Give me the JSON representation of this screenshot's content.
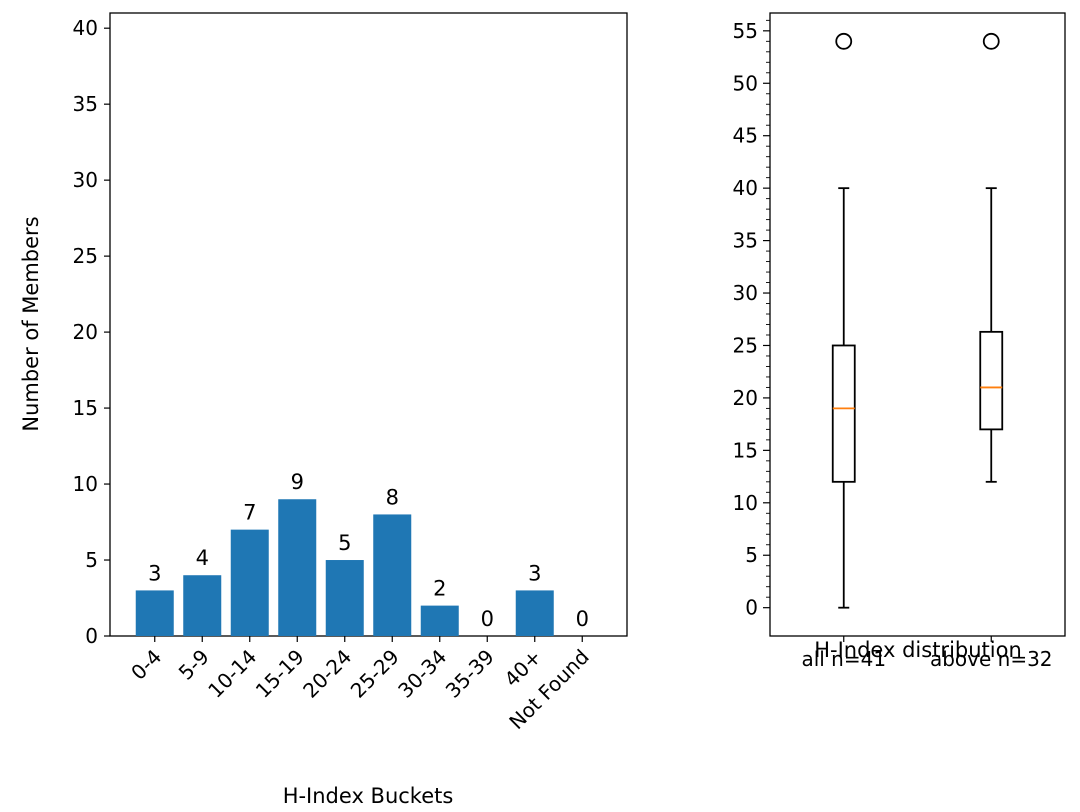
{
  "chart_data": [
    {
      "type": "bar",
      "xlabel": "H-Index Buckets",
      "ylabel": "Number of Members",
      "categories": [
        "0-4",
        "5-9",
        "10-14",
        "15-19",
        "20-24",
        "25-29",
        "30-34",
        "35-39",
        "40+",
        "Not Found"
      ],
      "values": [
        3,
        4,
        7,
        9,
        5,
        8,
        2,
        0,
        3,
        0
      ],
      "data_labels": [
        "3",
        "4",
        "7",
        "9",
        "5",
        "8",
        "2",
        "0",
        "3",
        "0"
      ],
      "ylim": [
        0,
        41
      ],
      "yticks": [
        "0",
        "5",
        "10",
        "15",
        "20",
        "25",
        "30",
        "35",
        "40"
      ],
      "bar_color": "#1f77b4",
      "grid": false
    },
    {
      "type": "box",
      "xlabel": "H-Index distribution",
      "categories": [
        "all n=41",
        "above n=32"
      ],
      "boxes": [
        {
          "category": "all n=41",
          "whisker_low": 0,
          "q1": 12,
          "median": 19,
          "q3": 25,
          "whisker_high": 40,
          "outliers": [
            54
          ]
        },
        {
          "category": "above n=32",
          "whisker_low": 12,
          "q1": 17,
          "median": 21,
          "q3": 26.3,
          "whisker_high": 40,
          "outliers": [
            54
          ]
        }
      ],
      "ylim": [
        -2.7,
        56.7
      ],
      "yticks": [
        "0",
        "5",
        "10",
        "15",
        "20",
        "25",
        "30",
        "35",
        "40",
        "45",
        "50",
        "55"
      ],
      "median_color": "#ff7f0e",
      "grid": false
    }
  ]
}
